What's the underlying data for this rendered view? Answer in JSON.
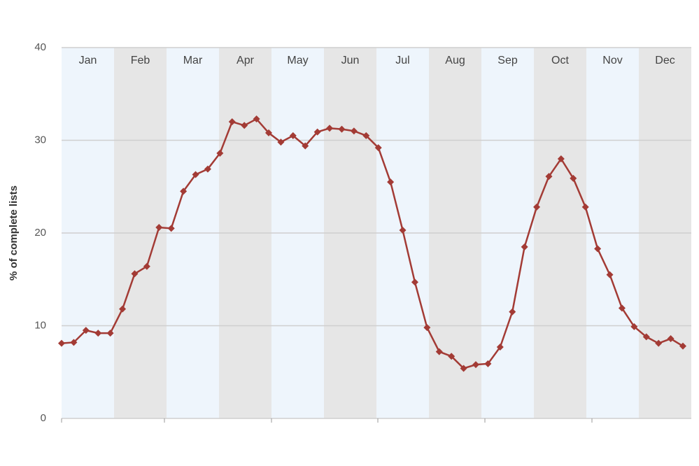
{
  "chart_data": {
    "type": "line",
    "ylabel": "% of complete lists",
    "months": [
      "Jan",
      "Feb",
      "Mar",
      "Apr",
      "May",
      "Jun",
      "Jul",
      "Aug",
      "Sep",
      "Oct",
      "Nov",
      "Dec"
    ],
    "categories": [
      null,
      null,
      null,
      null,
      null,
      null,
      null,
      null,
      null,
      null,
      null,
      null,
      null,
      null,
      null,
      null,
      null,
      null,
      null,
      null,
      null,
      null,
      null,
      null,
      null,
      null,
      null,
      null,
      null,
      null,
      null,
      null,
      null,
      null,
      null,
      null,
      null,
      null,
      null,
      null,
      null,
      null,
      null,
      null,
      null,
      null,
      null,
      null,
      null,
      null,
      null,
      null
    ],
    "series": [
      {
        "name": null,
        "color": "#a33b35",
        "values": [
          8.1,
          8.2,
          9.5,
          9.2,
          9.2,
          11.8,
          15.6,
          16.4,
          20.6,
          20.5,
          24.5,
          26.3,
          26.9,
          28.6,
          32.0,
          31.6,
          32.3,
          30.8,
          29.8,
          30.5,
          29.4,
          30.9,
          31.3,
          31.2,
          31.0,
          30.5,
          29.2,
          25.5,
          20.3,
          14.7,
          9.8,
          7.2,
          6.7,
          5.4,
          5.8,
          5.9,
          7.7,
          11.5,
          18.5,
          22.8,
          26.1,
          28.0,
          25.9,
          22.8,
          18.3,
          15.5,
          11.9,
          9.9,
          8.8,
          8.1,
          8.6,
          7.8
        ]
      }
    ],
    "ylim": [
      0,
      40
    ],
    "yticks": [
      0,
      10,
      20,
      30,
      40
    ],
    "grid": true
  }
}
